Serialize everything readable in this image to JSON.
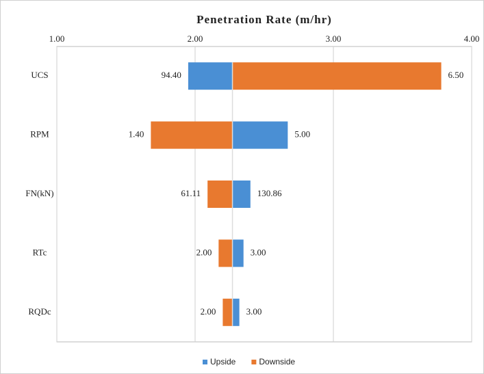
{
  "chart_data": {
    "type": "tornado",
    "title": "Penetration Rate (m/hr)",
    "categories": [
      "UCS",
      "RPM",
      "FN(kN)",
      "RTc",
      "RQDc"
    ],
    "base": 2.27,
    "series": [
      {
        "name": "Upside",
        "color": "#4a8fd4",
        "values": [
          1.95,
          2.67,
          2.4,
          2.35,
          2.32
        ],
        "inputs": [
          "94.40",
          "5.00",
          "130.86",
          "3.00",
          "3.00"
        ]
      },
      {
        "name": "Downside",
        "color": "#e8792f",
        "values": [
          3.78,
          1.68,
          2.09,
          2.17,
          2.2
        ],
        "inputs": [
          "6.50",
          "1.40",
          "61.11",
          "2.00",
          "2.00"
        ]
      }
    ],
    "xlim": [
      1,
      4
    ],
    "xticks": [
      {
        "value": 1,
        "label": "1.00"
      },
      {
        "value": 2,
        "label": "2.00"
      },
      {
        "value": 3,
        "label": "3.00"
      },
      {
        "value": 4,
        "label": "4.00"
      }
    ],
    "grid": true,
    "legend": "bottom"
  }
}
